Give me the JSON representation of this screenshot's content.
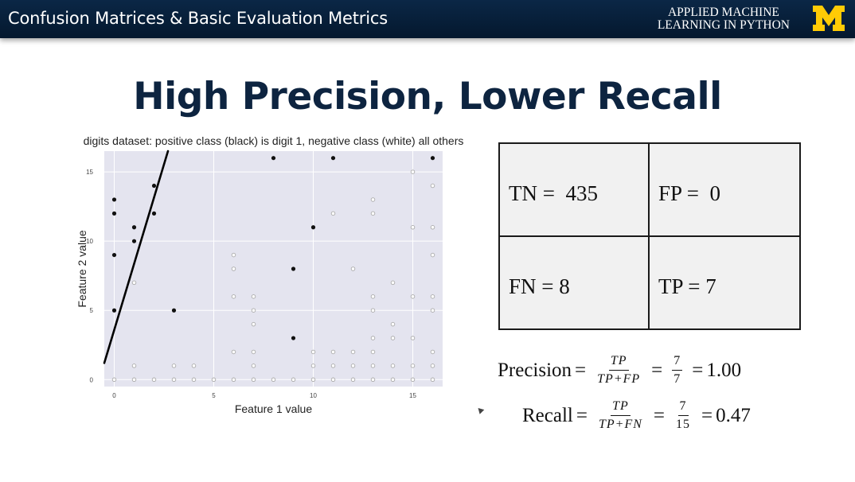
{
  "header": {
    "title": "Confusion Matrices & Basic Evaluation Metrics",
    "course_line1": "APPLIED MACHINE",
    "course_line2": "LEARNING IN PYTHON",
    "logo_color": "#ffcb05"
  },
  "slide_title": "High Precision, Lower Recall",
  "matrix": {
    "tn": "TN =  435",
    "fp": "FP =  0",
    "fn": "FN = 8",
    "tp": "TP = 7"
  },
  "precision": {
    "label": "Precision",
    "num": "TP",
    "den": "TP+FP",
    "val_num": "7",
    "val_den": "7",
    "result": "1.00"
  },
  "recall": {
    "label": "Recall",
    "num": "TP",
    "den": "TP+FN",
    "val_num": "7",
    "val_den": "15",
    "result": "0.47"
  },
  "chart_data": {
    "type": "scatter",
    "title": "digits dataset: positive class (black) is digit 1, negative class (white) all others",
    "xlabel": "Feature 1 value",
    "ylabel": "Feature 2 value",
    "xlim": [
      -0.5,
      16.5
    ],
    "ylim": [
      -0.5,
      16.5
    ],
    "xticks": [
      0,
      5,
      10,
      15
    ],
    "yticks": [
      0,
      5,
      10,
      15
    ],
    "grid": true,
    "background": "#e4e4ef",
    "series": [
      {
        "color": "#111111",
        "filled": true,
        "points": [
          [
            0,
            5
          ],
          [
            0,
            9
          ],
          [
            0,
            12
          ],
          [
            0,
            13
          ],
          [
            1,
            10
          ],
          [
            1,
            11
          ],
          [
            2,
            12
          ],
          [
            2,
            14
          ],
          [
            3,
            5
          ],
          [
            8,
            16
          ],
          [
            9,
            8
          ],
          [
            9,
            3
          ],
          [
            10,
            11
          ],
          [
            11,
            16
          ],
          [
            16,
            16
          ]
        ]
      },
      {
        "color": "#aaaaaa",
        "filled": false,
        "points": [
          [
            0,
            0
          ],
          [
            1,
            0
          ],
          [
            2,
            0
          ],
          [
            3,
            0
          ],
          [
            4,
            0
          ],
          [
            5,
            0
          ],
          [
            6,
            0
          ],
          [
            7,
            0
          ],
          [
            8,
            0
          ],
          [
            9,
            0
          ],
          [
            10,
            0
          ],
          [
            11,
            0
          ],
          [
            12,
            0
          ],
          [
            13,
            0
          ],
          [
            14,
            0
          ],
          [
            15,
            0
          ],
          [
            16,
            0
          ],
          [
            1,
            1
          ],
          [
            3,
            1
          ],
          [
            4,
            1
          ],
          [
            7,
            1
          ],
          [
            10,
            1
          ],
          [
            11,
            1
          ],
          [
            12,
            1
          ],
          [
            13,
            1
          ],
          [
            14,
            1
          ],
          [
            15,
            1
          ],
          [
            16,
            1
          ],
          [
            6,
            2
          ],
          [
            7,
            2
          ],
          [
            10,
            2
          ],
          [
            11,
            2
          ],
          [
            12,
            2
          ],
          [
            13,
            2
          ],
          [
            16,
            2
          ],
          [
            13,
            3
          ],
          [
            14,
            3
          ],
          [
            15,
            3
          ],
          [
            7,
            4
          ],
          [
            14,
            4
          ],
          [
            7,
            5
          ],
          [
            13,
            5
          ],
          [
            16,
            5
          ],
          [
            6,
            6
          ],
          [
            7,
            6
          ],
          [
            13,
            6
          ],
          [
            15,
            6
          ],
          [
            16,
            6
          ],
          [
            1,
            7
          ],
          [
            14,
            7
          ],
          [
            6,
            8
          ],
          [
            12,
            8
          ],
          [
            6,
            9
          ],
          [
            16,
            9
          ],
          [
            15,
            11
          ],
          [
            16,
            11
          ],
          [
            11,
            12
          ],
          [
            13,
            12
          ],
          [
            13,
            13
          ],
          [
            16,
            14
          ],
          [
            15,
            15
          ]
        ]
      }
    ],
    "decision_line": [
      [
        -0.5,
        1.2
      ],
      [
        2.7,
        16.5
      ]
    ]
  }
}
